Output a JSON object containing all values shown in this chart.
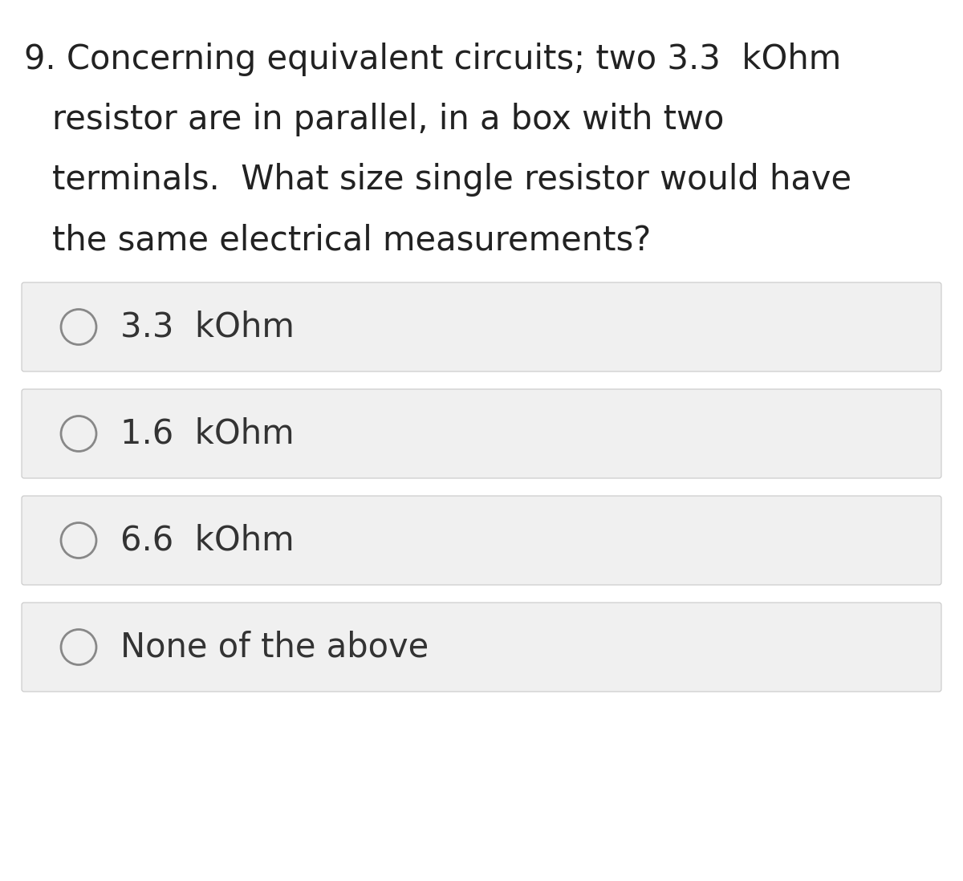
{
  "background_color": "#ffffff",
  "question_number": "9.",
  "question_text_lines": [
    "Concerning equivalent circuits; two 3.3  kOhm",
    "resistor are in parallel, in a box with two",
    "terminals.  What size single resistor would have",
    "the same electrical measurements?"
  ],
  "options": [
    "3.3  kOhm",
    "1.6  kOhm",
    "6.6  kOhm",
    "None of the above"
  ],
  "option_box_color": "#f0f0f0",
  "option_box_edge_color": "#c8c8c8",
  "circle_edge_color": "#888888",
  "text_color": "#333333",
  "question_color": "#222222",
  "font_size_question": 30,
  "font_size_option": 30,
  "fig_width": 12.0,
  "fig_height": 10.98,
  "dpi": 100
}
